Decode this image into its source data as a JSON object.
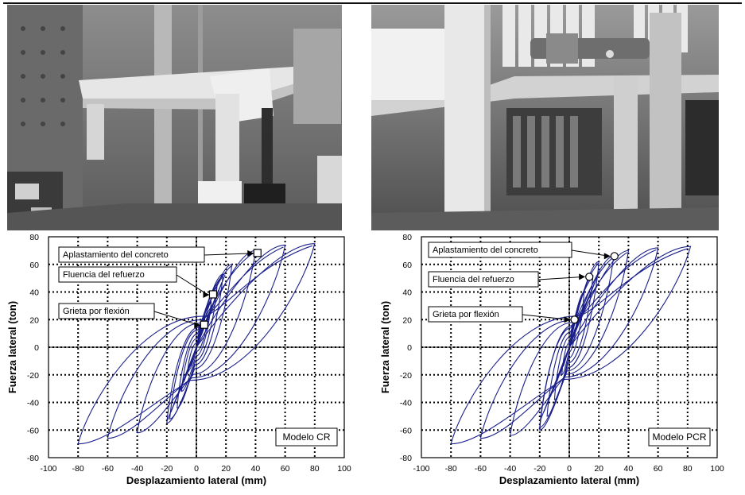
{
  "figure": {
    "photos": [
      {
        "subject": "laboratory test setup, specimen CR (photograph)"
      },
      {
        "subject": "laboratory test setup with hydraulic actuator, specimen PCR (photograph)"
      }
    ]
  },
  "chart_data": [
    {
      "type": "line",
      "title": "",
      "xlabel": "Desplazamiento lateral (mm)",
      "ylabel": "Fuerza  lateral (ton)",
      "xlim": [
        -100,
        100
      ],
      "ylim": [
        -80,
        80
      ],
      "xticks": [
        "-100",
        "-80",
        "-60",
        "-40",
        "-20",
        "0",
        "20",
        "40",
        "60",
        "80",
        "100"
      ],
      "yticks": [
        "80",
        "60",
        "40",
        "20",
        "0",
        "-20",
        "-40",
        "-60",
        "-80"
      ],
      "grid": true,
      "marker": "square",
      "box_label": "Modelo CR",
      "annotations": [
        {
          "text": "Aplastamiento del concreto",
          "x": 41,
          "y": 68
        },
        {
          "text": "Fluencia del refuerzo",
          "x": 11,
          "y": 38
        },
        {
          "text": "Grieta por flexión",
          "x": 5,
          "y": 16
        }
      ],
      "loops": [
        {
          "xmax": 7,
          "ymax": 18,
          "xmin": -6,
          "ymin": -18
        },
        {
          "xmax": 10,
          "ymax": 33,
          "xmin": -10,
          "ymin": -32
        },
        {
          "xmax": 14,
          "ymax": 45,
          "xmin": -13,
          "ymin": -44
        },
        {
          "xmax": 18,
          "ymax": 53,
          "xmin": -18,
          "ymin": -52
        },
        {
          "xmax": 24,
          "ymax": 60,
          "xmin": -20,
          "ymin": -55
        },
        {
          "xmax": 40,
          "ymax": 70,
          "xmin": -40,
          "ymin": -62
        },
        {
          "xmax": 60,
          "ymax": 74,
          "xmin": -60,
          "ymin": -66
        },
        {
          "xmax": 80,
          "ymax": 75,
          "xmin": -80,
          "ymin": -70
        }
      ]
    },
    {
      "type": "line",
      "title": "",
      "xlabel": "Desplazamiento lateral (mm)",
      "ylabel": "Fuerza lateral (ton)",
      "xlim": [
        -100,
        100
      ],
      "ylim": [
        -80,
        80
      ],
      "xticks": [
        "-100",
        "-80",
        "-60",
        "-40",
        "-20",
        "0",
        "20",
        "40",
        "60",
        "80",
        "100"
      ],
      "yticks": [
        "80",
        "60",
        "40",
        "20",
        "0",
        "-20",
        "-40",
        "-60",
        "-80"
      ],
      "grid": true,
      "marker": "circle",
      "box_label": "Modelo PCR",
      "annotations": [
        {
          "text": "Aplastamiento del concreto",
          "x": 30,
          "y": 66
        },
        {
          "text": "Fluencia del refuerzo",
          "x": 13,
          "y": 51
        },
        {
          "text": "Grieta por flexión",
          "x": 3,
          "y": 20
        }
      ],
      "loops": [
        {
          "xmax": 5,
          "ymax": 20,
          "xmin": -5,
          "ymin": -20
        },
        {
          "xmax": 10,
          "ymax": 40,
          "xmin": -10,
          "ymin": -38
        },
        {
          "xmax": 16,
          "ymax": 52,
          "xmin": -15,
          "ymin": -50
        },
        {
          "xmax": 20,
          "ymax": 62,
          "xmin": -20,
          "ymin": -58
        },
        {
          "xmax": 30,
          "ymax": 66,
          "xmin": -20,
          "ymin": -60
        },
        {
          "xmax": 40,
          "ymax": 70,
          "xmin": -40,
          "ymin": -64
        },
        {
          "xmax": 60,
          "ymax": 72,
          "xmin": -60,
          "ymin": -66
        },
        {
          "xmax": 82,
          "ymax": 73,
          "xmin": -80,
          "ymin": -70
        }
      ]
    }
  ]
}
